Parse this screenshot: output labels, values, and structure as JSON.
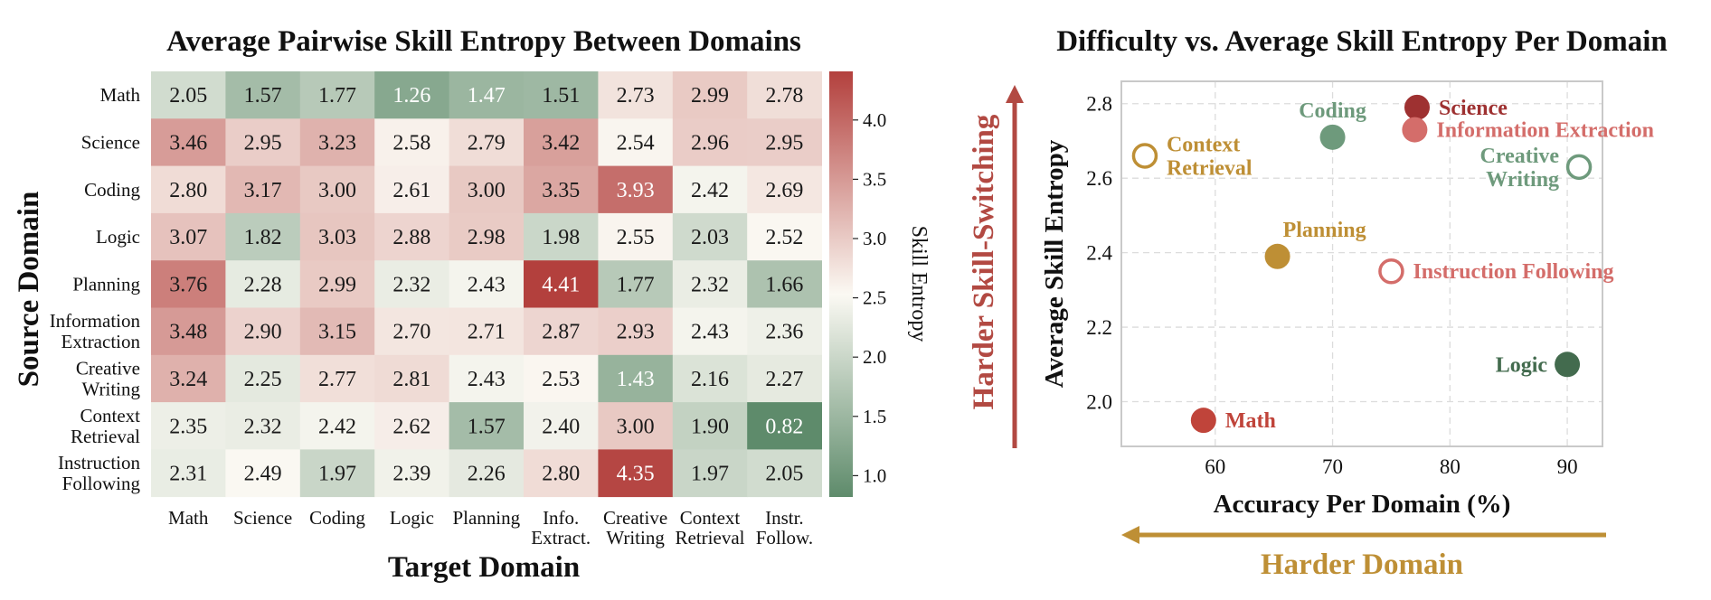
{
  "colors": {
    "green": "#5e8b6b",
    "white": "#fbf9f3",
    "red": "#b3403d",
    "arrow_red": "#b24942",
    "arrow_gold": "#be8f35"
  },
  "chart_data": [
    {
      "type": "heatmap",
      "title": "Average Pairwise Skill Entropy Between Domains",
      "xlabel": "Target Domain",
      "ylabel": "Source Domain",
      "colorbar_label": "Skill Entropy",
      "colorbar_range": [
        0.82,
        4.41
      ],
      "colorbar_ticks": [
        "1.0",
        "1.5",
        "2.0",
        "2.5",
        "3.0",
        "3.5",
        "4.0"
      ],
      "rows": [
        [
          "Math"
        ],
        [
          "Science"
        ],
        [
          "Coding"
        ],
        [
          "Logic"
        ],
        [
          "Planning"
        ],
        [
          "Information",
          "Extraction"
        ],
        [
          "Creative",
          "Writing"
        ],
        [
          "Context",
          "Retrieval"
        ],
        [
          "Instruction",
          "Following"
        ]
      ],
      "columns": [
        [
          "Math"
        ],
        [
          "Science"
        ],
        [
          "Coding"
        ],
        [
          "Logic"
        ],
        [
          "Planning"
        ],
        [
          "Info.",
          "Extract."
        ],
        [
          "Creative",
          "Writing"
        ],
        [
          "Context",
          "Retrieval"
        ],
        [
          "Instr.",
          "Follow."
        ]
      ],
      "values": [
        [
          2.05,
          1.57,
          1.77,
          1.26,
          1.47,
          1.51,
          2.73,
          2.99,
          2.78
        ],
        [
          3.46,
          2.95,
          3.23,
          2.58,
          2.79,
          3.42,
          2.54,
          2.96,
          2.95
        ],
        [
          2.8,
          3.17,
          3.0,
          2.61,
          3.0,
          3.35,
          3.93,
          2.42,
          2.69
        ],
        [
          3.07,
          1.82,
          3.03,
          2.88,
          2.98,
          1.98,
          2.55,
          2.03,
          2.52
        ],
        [
          3.76,
          2.28,
          2.99,
          2.32,
          2.43,
          4.41,
          1.77,
          2.32,
          1.66
        ],
        [
          3.48,
          2.9,
          3.15,
          2.7,
          2.71,
          2.87,
          2.93,
          2.43,
          2.36
        ],
        [
          3.24,
          2.25,
          2.77,
          2.81,
          2.43,
          2.53,
          1.43,
          2.16,
          2.27
        ],
        [
          2.35,
          2.32,
          2.42,
          2.62,
          1.57,
          2.4,
          3.0,
          1.9,
          0.82
        ],
        [
          2.31,
          2.49,
          1.97,
          2.39,
          2.26,
          2.8,
          4.35,
          1.97,
          2.05
        ]
      ]
    },
    {
      "type": "scatter",
      "title": "Difficulty vs. Average Skill Entropy Per Domain",
      "xlabel": "Accuracy Per Domain (%)",
      "ylabel": "Average Skill Entropy",
      "xlim": [
        52,
        93
      ],
      "ylim": [
        1.88,
        2.86
      ],
      "xticks": [
        60,
        70,
        80,
        90
      ],
      "yticks": [
        2.0,
        2.2,
        2.4,
        2.6,
        2.8
      ],
      "grid": true,
      "arrows": {
        "vertical_label": "Harder Skill-Switching",
        "horizontal_label": "Harder Domain"
      },
      "points": [
        {
          "name": [
            "Science"
          ],
          "x": 77.2,
          "y": 2.79,
          "color": "#9e3131",
          "filled": true,
          "label_pos": "right"
        },
        {
          "name": [
            "Information Extraction"
          ],
          "x": 77.0,
          "y": 2.73,
          "color": "#d46d6a",
          "filled": true,
          "label_pos": "right"
        },
        {
          "name": [
            "Coding"
          ],
          "x": 70.0,
          "y": 2.71,
          "color": "#6e9a7c",
          "filled": true,
          "label_pos": "above"
        },
        {
          "name": [
            "Context",
            "Retrieval"
          ],
          "x": 54.0,
          "y": 2.66,
          "color": "#be8f35",
          "filled": false,
          "label_pos": "right"
        },
        {
          "name": [
            "Creative",
            "Writing"
          ],
          "x": 91.0,
          "y": 2.63,
          "color": "#6e9a7c",
          "filled": false,
          "label_pos": "left"
        },
        {
          "name": [
            "Planning"
          ],
          "x": 65.3,
          "y": 2.39,
          "color": "#be8f35",
          "filled": true,
          "label_pos": "above-right"
        },
        {
          "name": [
            "Instruction Following"
          ],
          "x": 75.0,
          "y": 2.35,
          "color": "#d46d6a",
          "filled": false,
          "label_pos": "right"
        },
        {
          "name": [
            "Logic"
          ],
          "x": 90.0,
          "y": 2.1,
          "color": "#436b4e",
          "filled": true,
          "label_pos": "left"
        },
        {
          "name": [
            "Math"
          ],
          "x": 59.0,
          "y": 1.95,
          "color": "#c0443a",
          "filled": true,
          "label_pos": "right"
        }
      ]
    }
  ]
}
